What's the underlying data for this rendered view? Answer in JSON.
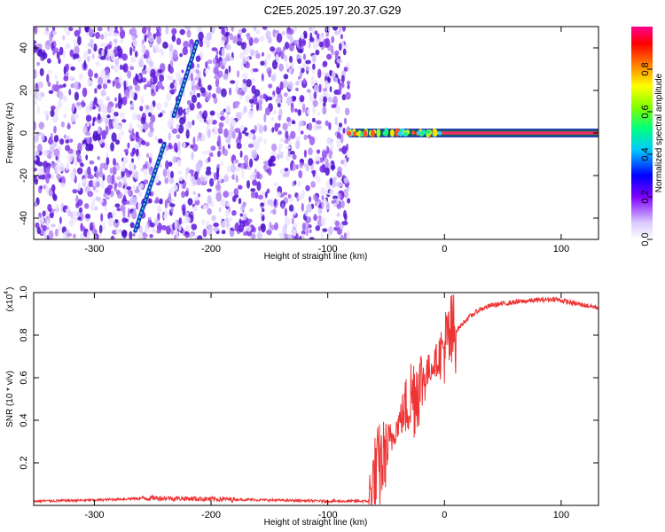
{
  "title": "C2E5.2025.197.20.37.G29",
  "chart_data": [
    {
      "type": "heatmap",
      "xlabel": "Height of straight line (km)",
      "ylabel": "Frequency (Hz)",
      "xlim": [
        -352,
        132
      ],
      "ylim": [
        -50,
        50
      ],
      "xticks": [
        -300,
        -200,
        -100,
        0,
        100
      ],
      "yticks": [
        -40,
        -20,
        0,
        20,
        40
      ],
      "colorbar": {
        "label": "Normalized spectral amplitude",
        "range": [
          0,
          1
        ],
        "ticks": [
          0.0,
          0.2,
          0.4,
          0.6,
          0.8
        ],
        "colors": [
          "#ffffff",
          "#8000ff",
          "#0000ff",
          "#00c0ff",
          "#00ff80",
          "#80ff00",
          "#ffff00",
          "#ff8000",
          "#ff0000",
          "#ff0080"
        ]
      },
      "features": {
        "noise_region_x": [
          -352,
          -82
        ],
        "tone_line_freq": 0,
        "tone_line_x": [
          -82,
          132
        ],
        "diagonal_trace_1": {
          "x": [
            -265,
            -240
          ],
          "freq": [
            -46,
            -5
          ]
        },
        "diagonal_trace_2": {
          "x": [
            -232,
            -212
          ],
          "freq": [
            8,
            43
          ]
        }
      }
    },
    {
      "type": "line",
      "xlabel": "Height of straight line (km)",
      "ylabel": "SNR (10 * v/v)",
      "multiplier": "(x10",
      "multiplier_exp": "4",
      "xlim": [
        -352,
        132
      ],
      "ylim": [
        0,
        1.0
      ],
      "xticks": [
        -300,
        -200,
        -100,
        0,
        100
      ],
      "yticks": [
        0.2,
        0.4,
        0.6,
        0.8,
        1.0
      ],
      "line_color": "#ee3333",
      "series": [
        {
          "points": [
            [
              -352,
              0.02
            ],
            [
              -300,
              0.025
            ],
            [
              -250,
              0.035
            ],
            [
              -200,
              0.03
            ],
            [
              -150,
              0.025
            ],
            [
              -100,
              0.02
            ],
            [
              -65,
              0.02
            ],
            [
              -60,
              0.12
            ],
            [
              -50,
              0.25
            ],
            [
              -40,
              0.38
            ],
            [
              -30,
              0.5
            ],
            [
              -20,
              0.58
            ],
            [
              -10,
              0.66
            ],
            [
              0,
              0.74
            ],
            [
              10,
              0.82
            ],
            [
              20,
              0.88
            ],
            [
              30,
              0.92
            ],
            [
              40,
              0.94
            ],
            [
              60,
              0.955
            ],
            [
              80,
              0.965
            ],
            [
              95,
              0.97
            ],
            [
              110,
              0.95
            ],
            [
              132,
              0.93
            ]
          ]
        }
      ]
    }
  ]
}
